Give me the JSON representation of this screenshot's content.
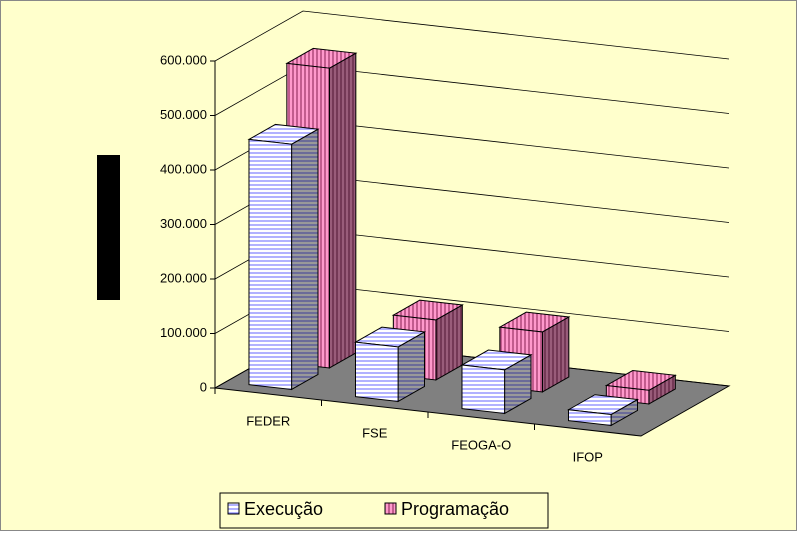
{
  "chart_data": {
    "type": "bar3d",
    "categories": [
      "FEDER",
      "FSE",
      "FEOGA-O",
      "IFOP"
    ],
    "series": [
      {
        "name": "Execução",
        "color": "#8080ff",
        "values": [
          450000,
          100000,
          80000,
          20000
        ]
      },
      {
        "name": "Programação",
        "color": "#993366",
        "values": [
          550000,
          110000,
          110000,
          25000
        ]
      }
    ],
    "ylim": [
      0,
      600000
    ],
    "yticks": [
      0,
      {
        "value": 100000,
        "label": "100.000"
      },
      {
        "value": 200000,
        "label": "200.000"
      },
      {
        "value": 300000,
        "label": "300.000"
      },
      {
        "value": 400000,
        "label": "400.000"
      },
      {
        "value": 500000,
        "label": "500.000"
      },
      {
        "value": 600000,
        "label": "600.000"
      }
    ],
    "grid": true,
    "legend": "bottom"
  }
}
